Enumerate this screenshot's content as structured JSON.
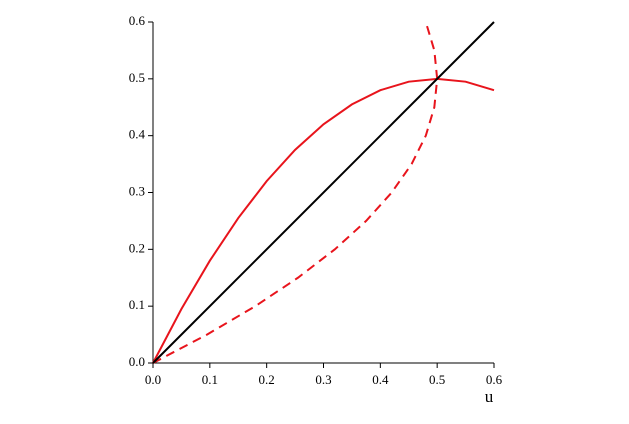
{
  "chart_data": {
    "type": "line",
    "xlabel": "u",
    "xlim": [
      0,
      0.6
    ],
    "ylim": [
      0,
      0.6
    ],
    "xticks": [
      {
        "value": 0,
        "label": "0.0"
      },
      0.1,
      0.2,
      0.3,
      0.4,
      0.5,
      0.6
    ],
    "yticks": [
      {
        "value": 0,
        "label": "0.0"
      },
      0.1,
      0.2,
      0.3,
      0.4,
      0.5,
      0.6
    ],
    "series": [
      {
        "color": "#e8141c",
        "dashed": false,
        "x": [
          0,
          0.05,
          0.1,
          0.15,
          0.2,
          0.25,
          0.3,
          0.35,
          0.4,
          0.45,
          0.5,
          0.55,
          0.6
        ],
        "values": [
          0,
          0.095,
          0.18,
          0.255,
          0.32,
          0.375,
          0.42,
          0.455,
          0.48,
          0.495,
          0.5,
          0.495,
          0.48
        ]
      },
      {
        "color": "#e8141c",
        "dashed": true,
        "x": [
          0,
          0.095,
          0.18,
          0.255,
          0.32,
          0.375,
          0.42,
          0.455,
          0.48,
          0.495,
          0.5,
          0.495,
          0.48
        ],
        "values": [
          0,
          0.05,
          0.1,
          0.15,
          0.2,
          0.25,
          0.3,
          0.35,
          0.4,
          0.45,
          0.5,
          0.55,
          0.6
        ]
      },
      {
        "color": "#000000",
        "dashed": false,
        "x": [
          0,
          0.6
        ],
        "values": [
          0,
          0.6
        ]
      }
    ]
  }
}
